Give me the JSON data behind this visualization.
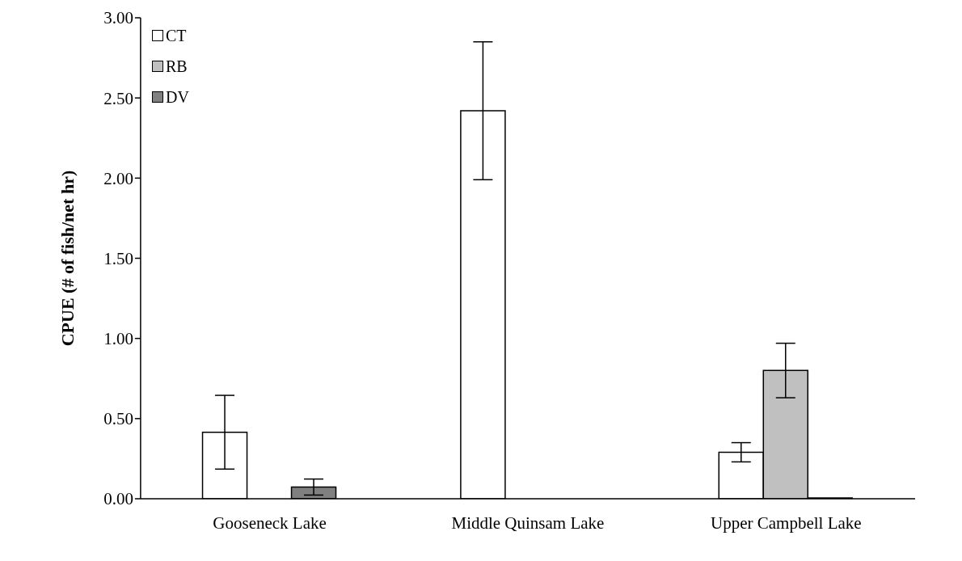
{
  "chart_data": {
    "type": "bar",
    "ylabel": "CPUE (# of fish/net hr)",
    "categories": [
      "Gooseneck Lake",
      "Middle Quinsam Lake",
      "Upper Campbell Lake"
    ],
    "series": [
      {
        "name": "CT",
        "color": "#ffffff",
        "values": [
          0.415,
          2.42,
          0.29
        ],
        "errors": [
          0.23,
          0.43,
          0.06
        ]
      },
      {
        "name": "RB",
        "color": "#c0c0c0",
        "values": [
          0,
          0,
          0.8
        ],
        "errors": [
          null,
          null,
          0.17
        ]
      },
      {
        "name": "DV",
        "color": "#808080",
        "values": [
          0.073,
          0,
          0.005
        ],
        "errors": [
          0.05,
          null,
          null
        ]
      }
    ],
    "ylim": [
      0,
      3
    ],
    "yticks": [
      {
        "value": 0,
        "label": "0.00"
      },
      {
        "value": 0.5,
        "label": "0.50"
      },
      {
        "value": 1,
        "label": "1.00"
      },
      {
        "value": 1.5,
        "label": "1.50"
      },
      {
        "value": 2,
        "label": "2.00"
      },
      {
        "value": 2.5,
        "label": "2.50"
      },
      {
        "value": 3,
        "label": "3.00"
      }
    ],
    "grid": false,
    "legend": "top left"
  }
}
